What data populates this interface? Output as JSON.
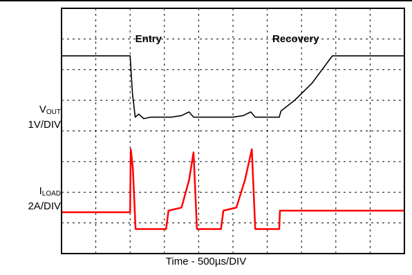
{
  "chart_data": {
    "type": "line",
    "xlabel": "Time - 500µs/DIV",
    "divisions": {
      "x": 10,
      "y": 8
    },
    "annotations": [
      {
        "text": "Entry",
        "x_div": 2.15,
        "y_div": 1.1
      },
      {
        "text": "Recovery",
        "x_div": 6.15,
        "y_div": 1.1
      }
    ],
    "series": [
      {
        "id": "vout",
        "color": "#000000",
        "label_main": "V",
        "label_sub": "OUT",
        "label_scale": "1V/DIV",
        "points": [
          [
            0,
            1.55
          ],
          [
            2.0,
            1.55
          ],
          [
            2.07,
            2.8
          ],
          [
            2.15,
            3.55
          ],
          [
            2.25,
            3.45
          ],
          [
            2.4,
            3.6
          ],
          [
            2.6,
            3.55
          ],
          [
            3.2,
            3.55
          ],
          [
            3.5,
            3.5
          ],
          [
            3.72,
            3.38
          ],
          [
            3.85,
            3.55
          ],
          [
            5.0,
            3.55
          ],
          [
            5.3,
            3.5
          ],
          [
            5.52,
            3.38
          ],
          [
            5.65,
            3.55
          ],
          [
            6.35,
            3.55
          ],
          [
            6.4,
            3.35
          ],
          [
            6.8,
            3.0
          ],
          [
            7.3,
            2.45
          ],
          [
            7.9,
            1.55
          ],
          [
            10,
            1.55
          ]
        ]
      },
      {
        "id": "iload",
        "color": "#ff0000",
        "label_main": "I",
        "label_sub": "LOAD",
        "label_scale": "2A/DIV",
        "points": [
          [
            0,
            6.65
          ],
          [
            2.0,
            6.65
          ],
          [
            2.02,
            4.6
          ],
          [
            2.08,
            5.2
          ],
          [
            2.12,
            6.2
          ],
          [
            2.16,
            7.2
          ],
          [
            3.05,
            7.2
          ],
          [
            3.12,
            6.6
          ],
          [
            3.5,
            6.5
          ],
          [
            3.72,
            5.6
          ],
          [
            3.85,
            4.7
          ],
          [
            3.95,
            7.2
          ],
          [
            4.65,
            7.2
          ],
          [
            4.72,
            6.6
          ],
          [
            5.1,
            6.5
          ],
          [
            5.35,
            5.6
          ],
          [
            5.55,
            4.6
          ],
          [
            5.65,
            7.2
          ],
          [
            6.35,
            7.2
          ],
          [
            6.37,
            6.6
          ],
          [
            10,
            6.6
          ]
        ]
      }
    ]
  }
}
